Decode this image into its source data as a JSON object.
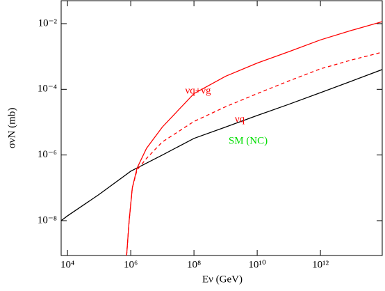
{
  "chart_data": {
    "type": "line",
    "log_x": true,
    "log_y": true,
    "xlabel": "Eν (GeV)",
    "ylabel": "σνN (mb)",
    "xlim": [
      6300,
      90000000000000
    ],
    "ylim": [
      8.7e-10,
      0.05
    ],
    "xticks": [
      {
        "value": 10000,
        "label": "10⁴"
      },
      {
        "value": 1000000,
        "label": "10⁶"
      },
      {
        "value": 100000000,
        "label": "10⁸"
      },
      {
        "value": 10000000000,
        "label": "10¹⁰"
      },
      {
        "value": 1000000000000,
        "label": "10¹²"
      }
    ],
    "yticks": [
      {
        "value": 1e-08,
        "label": "10⁻⁸"
      },
      {
        "value": 1e-06,
        "label": "10⁻⁶"
      },
      {
        "value": 0.0001,
        "label": "10⁻⁴"
      },
      {
        "value": 0.01,
        "label": "10⁻²"
      }
    ],
    "series": [
      {
        "color": "#000000",
        "dashed": false,
        "x": [
          6300,
          10000,
          100000,
          1000000,
          10000000,
          100000000,
          1000000000,
          10000000000,
          100000000000,
          1000000000000,
          10000000000000,
          90000000000000
        ],
        "values": [
          1e-08,
          1.4e-08,
          6.3e-08,
          3.2e-07,
          1e-06,
          3.2e-06,
          7.1e-06,
          1.6e-05,
          3.5e-05,
          7.9e-05,
          0.00018,
          0.0004
        ]
      },
      {
        "color": "#ff0000",
        "dashed": false,
        "x": [
          741000,
          891000,
          1122000,
          1585000,
          3162000,
          10000000,
          100000000,
          1000000000,
          10000000000,
          100000000000,
          1000000000000,
          10000000000000,
          90000000000000
        ],
        "values": [
          8.7e-10,
          1e-08,
          1e-07,
          4e-07,
          1.6e-06,
          7.1e-06,
          7.4e-05,
          0.00025,
          0.00063,
          0.0014,
          0.0032,
          0.0063,
          0.0115
        ]
      },
      {
        "color": "#ff0000",
        "dashed": true,
        "x": [
          741000,
          891000,
          1122000,
          1585000,
          3162000,
          10000000,
          100000000,
          1000000000,
          10000000000,
          100000000000,
          1000000000000,
          10000000000000,
          90000000000000
        ],
        "values": [
          8.7e-10,
          1e-08,
          1e-07,
          3.5e-07,
          7.9e-07,
          2.5e-06,
          1.05e-05,
          2.95e-05,
          7.4e-05,
          0.00018,
          0.00042,
          0.00079,
          0.00135
        ]
      }
    ],
    "annotations": [
      {
        "text": "νq+νg",
        "color": "#ff0000"
      },
      {
        "text": "νq",
        "color": "#ff0000"
      },
      {
        "text": "SM (NC)",
        "color": "#00dd00"
      }
    ]
  }
}
